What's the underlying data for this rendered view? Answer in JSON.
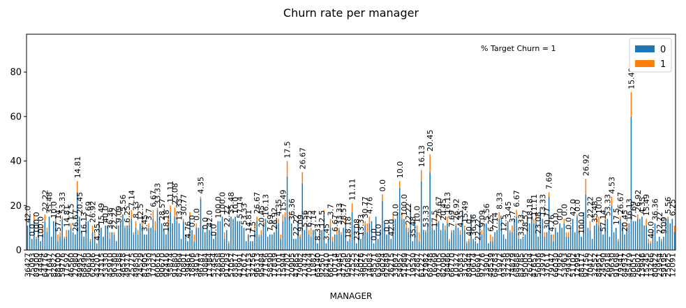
{
  "chart_data": {
    "type": "bar",
    "stacked": true,
    "title": "Churn rate per manager",
    "xlabel": "MANAGER",
    "ylabel": "",
    "ylim": [
      0,
      97
    ],
    "yticks": [
      0,
      20,
      40,
      60,
      80
    ],
    "annotation": "% Target Churn = 1",
    "legend": {
      "position": "top-right",
      "title": ""
    },
    "colors": {
      "0": "#1f77b4",
      "1": "#ff7f0e"
    },
    "series": [
      {
        "name": "0",
        "color": "#1f77b4"
      },
      {
        "name": "1",
        "color": "#ff7f0e"
      }
    ],
    "highlighted_points": [
      {
        "category_index": 279,
        "values": [
          60,
          11
        ],
        "label": "15.49"
      },
      {
        "category_index": 120,
        "values": [
          33,
          7
        ],
        "label": "17.5"
      },
      {
        "category_index": 127,
        "values": [
          30,
          5
        ],
        "label": "26.67"
      },
      {
        "category_index": 186,
        "values": [
          35,
          8
        ],
        "label": "20.45"
      },
      {
        "category_index": 182,
        "values": [
          31,
          5
        ],
        "label": "16.13"
      },
      {
        "category_index": 23,
        "values": [
          26,
          5
        ],
        "label": "14.81"
      },
      {
        "category_index": 241,
        "values": [
          24,
          2
        ],
        "label": "7.69"
      },
      {
        "category_index": 172,
        "values": [
          28,
          3
        ],
        "label": "10.0"
      },
      {
        "category_index": 258,
        "values": [
          25,
          7
        ],
        "label": "26.92"
      },
      {
        "category_index": 80,
        "values": [
          23,
          1
        ],
        "label": "4.35"
      },
      {
        "category_index": 270,
        "values": [
          20,
          4
        ],
        "label": "4.53"
      }
    ],
    "bar_labels_visible": [
      "42.0",
      "0.0",
      "100.0",
      "100.0",
      "22.22",
      "35.48",
      "10.0",
      "57.14",
      "53.33",
      "14.81",
      "17.5",
      "26.67",
      "20.45",
      "16.13",
      "7.69",
      "26.92",
      "4.35",
      "15.49",
      "40.0",
      "36.36",
      "22.22",
      "9.09",
      "5.56",
      "6.25",
      "7.14",
      "8.33",
      "12.5",
      "3.45",
      "3.7",
      "6.67",
      "33.33",
      "28.57",
      "18.18",
      "11.11",
      "23.08",
      "13.33",
      "30.77",
      "4.76",
      "0.0",
      "0.0",
      "0.0",
      "0.0"
    ],
    "x_tick_labels_visible": [
      "99954",
      "10085",
      "99954"
    ],
    "num_categories": 300,
    "note": "Values of the 300 individual manager bars are unreadable at this resolution; bars are generated procedurally to reproduce the dense appearance, with the clearly visible peaks listed in highlighted_points."
  }
}
